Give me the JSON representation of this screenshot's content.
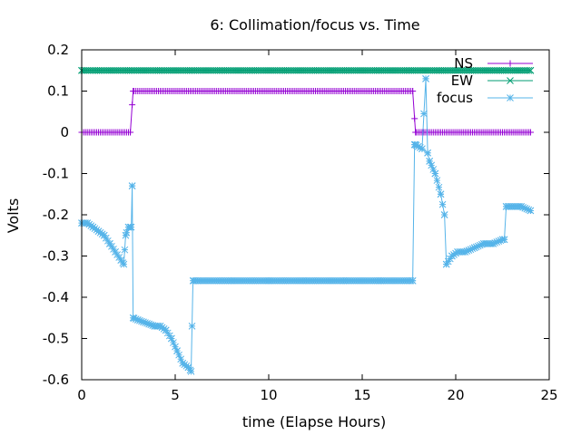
{
  "chart_data": {
    "type": "line",
    "title": "6: Collimation/focus vs. Time",
    "xlabel": "time (Elapse Hours)",
    "ylabel": "Volts",
    "xlim": [
      0,
      25
    ],
    "ylim": [
      -0.6,
      0.2
    ],
    "xticks": [
      0,
      5,
      10,
      15,
      20,
      25
    ],
    "xtick_labels": [
      "0",
      "5",
      "10",
      "15",
      "20",
      "25"
    ],
    "yticks": [
      -0.6,
      -0.5,
      -0.4,
      -0.3,
      -0.2,
      -0.1,
      0,
      0.1,
      0.2
    ],
    "ytick_labels": [
      "-0.6",
      "-0.5",
      "-0.4",
      "-0.3",
      "-0.2",
      "-0.1",
      "0",
      "0.1",
      "0.2"
    ],
    "grid": false,
    "legend_position": "top-right",
    "series": [
      {
        "name": "NS",
        "color": "#9400d3",
        "marker": "plus",
        "x": [
          0,
          2.6,
          2.75,
          17.7,
          17.85,
          24
        ],
        "y": [
          0,
          0,
          0.1,
          0.1,
          0,
          0
        ]
      },
      {
        "name": "EW",
        "color": "#009e73",
        "marker": "x",
        "x": [
          0,
          24
        ],
        "y": [
          0.15,
          0.15
        ]
      },
      {
        "name": "focus",
        "color": "#56b4e9",
        "marker": "star",
        "x": [
          0,
          0.3,
          0.6,
          0.9,
          1.2,
          1.5,
          1.8,
          2.1,
          2.25,
          2.35,
          2.5,
          2.65,
          2.7,
          2.75,
          3.0,
          3.3,
          3.6,
          3.9,
          4.2,
          4.5,
          4.8,
          5.1,
          5.4,
          5.7,
          5.85,
          5.95,
          6.2,
          8,
          10,
          12,
          14,
          16,
          17.7,
          17.8,
          17.85,
          18.2,
          18.4,
          18.5,
          18.6,
          18.9,
          19.2,
          19.4,
          19.5,
          19.8,
          20.1,
          20.5,
          21,
          21.5,
          22,
          22.5,
          22.6,
          22.7,
          23.0,
          23.5,
          24.0
        ],
        "y": [
          -0.22,
          -0.22,
          -0.23,
          -0.24,
          -0.25,
          -0.27,
          -0.29,
          -0.31,
          -0.32,
          -0.25,
          -0.23,
          -0.23,
          -0.13,
          -0.45,
          -0.455,
          -0.46,
          -0.465,
          -0.47,
          -0.47,
          -0.48,
          -0.5,
          -0.53,
          -0.56,
          -0.57,
          -0.58,
          -0.36,
          -0.36,
          -0.36,
          -0.36,
          -0.36,
          -0.36,
          -0.36,
          -0.36,
          -0.03,
          -0.03,
          -0.04,
          0.13,
          -0.05,
          -0.07,
          -0.1,
          -0.15,
          -0.2,
          -0.32,
          -0.3,
          -0.29,
          -0.29,
          -0.28,
          -0.27,
          -0.27,
          -0.26,
          -0.26,
          -0.18,
          -0.18,
          -0.18,
          -0.19
        ]
      }
    ]
  }
}
